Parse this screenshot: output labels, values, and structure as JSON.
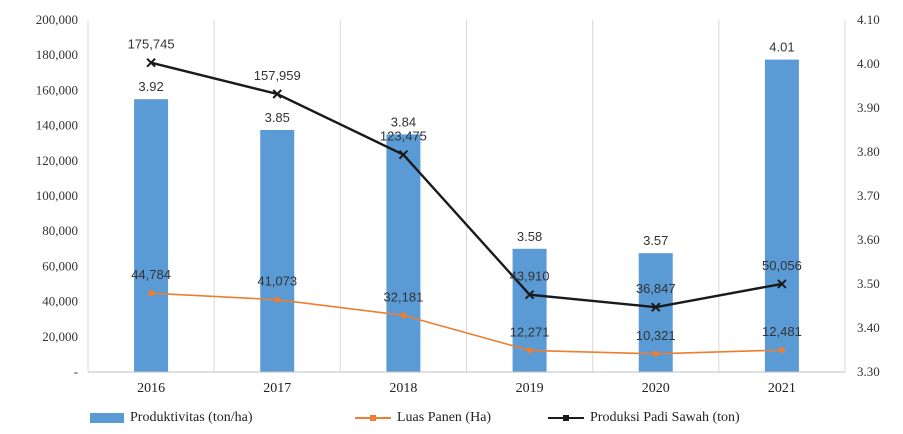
{
  "chart_data": {
    "type": "bar",
    "categories": [
      "2016",
      "2017",
      "2018",
      "2019",
      "2020",
      "2021"
    ],
    "series": [
      {
        "name": "Produktivitas (ton/ha)",
        "kind": "bar",
        "axis": "right",
        "values": [
          3.92,
          3.85,
          3.84,
          3.58,
          3.57,
          4.01
        ],
        "labels": [
          "3.92",
          "3.85",
          "3.84",
          "3.58",
          "3.57",
          "4.01"
        ],
        "color": "#5b9bd5"
      },
      {
        "name": "Luas Panen (Ha)",
        "kind": "line",
        "axis": "left",
        "values": [
          44784,
          41073,
          32181,
          12271,
          10321,
          12481
        ],
        "labels": [
          "44,784",
          "41,073",
          "32,181",
          "12,271",
          "10,321",
          "12,481"
        ],
        "color": "#ed7d31"
      },
      {
        "name": "Produksi Padi Sawah (ton)",
        "kind": "line",
        "axis": "left",
        "values": [
          175745,
          157959,
          123475,
          43910,
          36847,
          50056
        ],
        "labels": [
          "175,745",
          "157,959",
          "123,475",
          "43,910",
          "36,847",
          "50,056"
        ],
        "color": "#1a1a1a"
      }
    ],
    "y_left": {
      "min": 0,
      "max": 200000,
      "step": 20000,
      "ticks": [
        "-",
        "20,000",
        "40,000",
        "60,000",
        "80,000",
        "100,000",
        "120,000",
        "140,000",
        "160,000",
        "180,000",
        "200,000"
      ]
    },
    "y_right": {
      "min": 3.3,
      "max": 4.1,
      "step": 0.1,
      "ticks": [
        "3.30",
        "3.40",
        "3.50",
        "3.60",
        "3.70",
        "3.80",
        "3.90",
        "4.00",
        "4.10"
      ]
    },
    "grid": "vertical",
    "legend_position": "bottom"
  }
}
